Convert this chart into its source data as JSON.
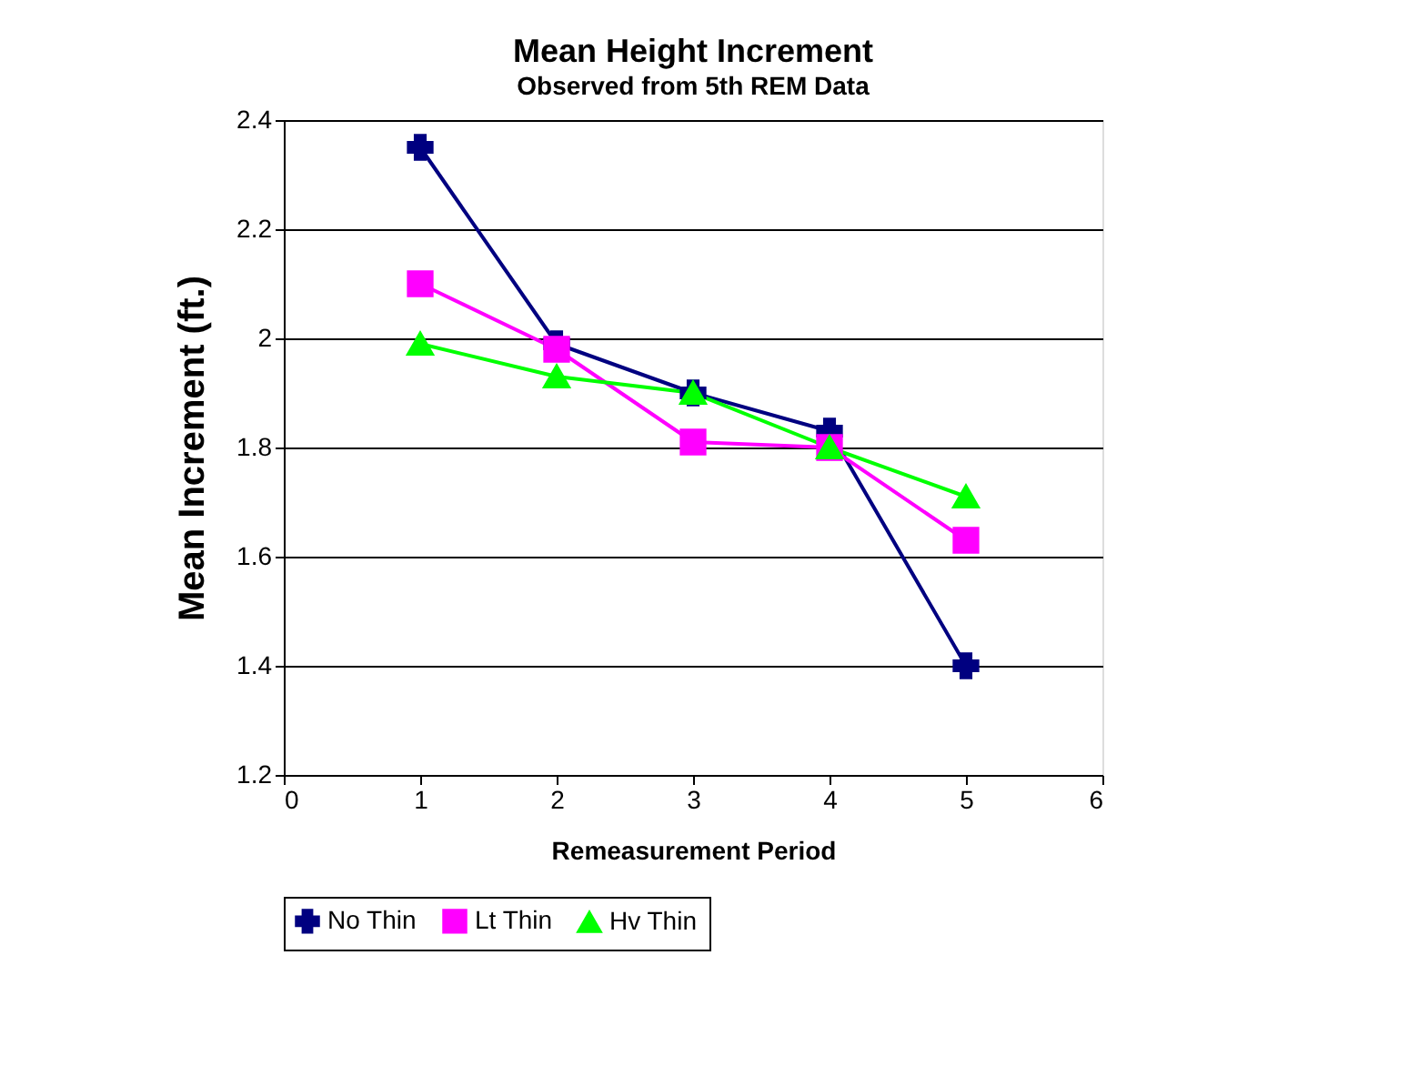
{
  "chart_data": {
    "type": "line",
    "title": "Mean Height Increment",
    "subtitle": "Observed from 5th REM Data",
    "xlabel": "Remeasurement Period",
    "ylabel": "Mean Increment (ft.)",
    "x": [
      1,
      2,
      3,
      4,
      5
    ],
    "series": [
      {
        "name": "No Thin",
        "color": "#000080",
        "marker": "cross",
        "values": [
          2.35,
          1.99,
          1.9,
          1.83,
          1.4
        ]
      },
      {
        "name": "Lt Thin",
        "color": "#ff00ff",
        "marker": "square",
        "values": [
          2.1,
          1.98,
          1.81,
          1.8,
          1.63
        ]
      },
      {
        "name": "Hv Thin",
        "color": "#00ff00",
        "marker": "triangle",
        "values": [
          1.99,
          1.93,
          1.9,
          1.8,
          1.71
        ]
      }
    ],
    "xlim": [
      0,
      6
    ],
    "xticks": [
      0,
      1,
      2,
      3,
      4,
      5,
      6
    ],
    "line_style": "solid",
    "ylim": [
      1.2,
      2.4
    ],
    "yticks": [
      1.2,
      1.4,
      1.6,
      1.8,
      2,
      2.2,
      2.4
    ],
    "grid": "y",
    "legend": "bottom"
  }
}
